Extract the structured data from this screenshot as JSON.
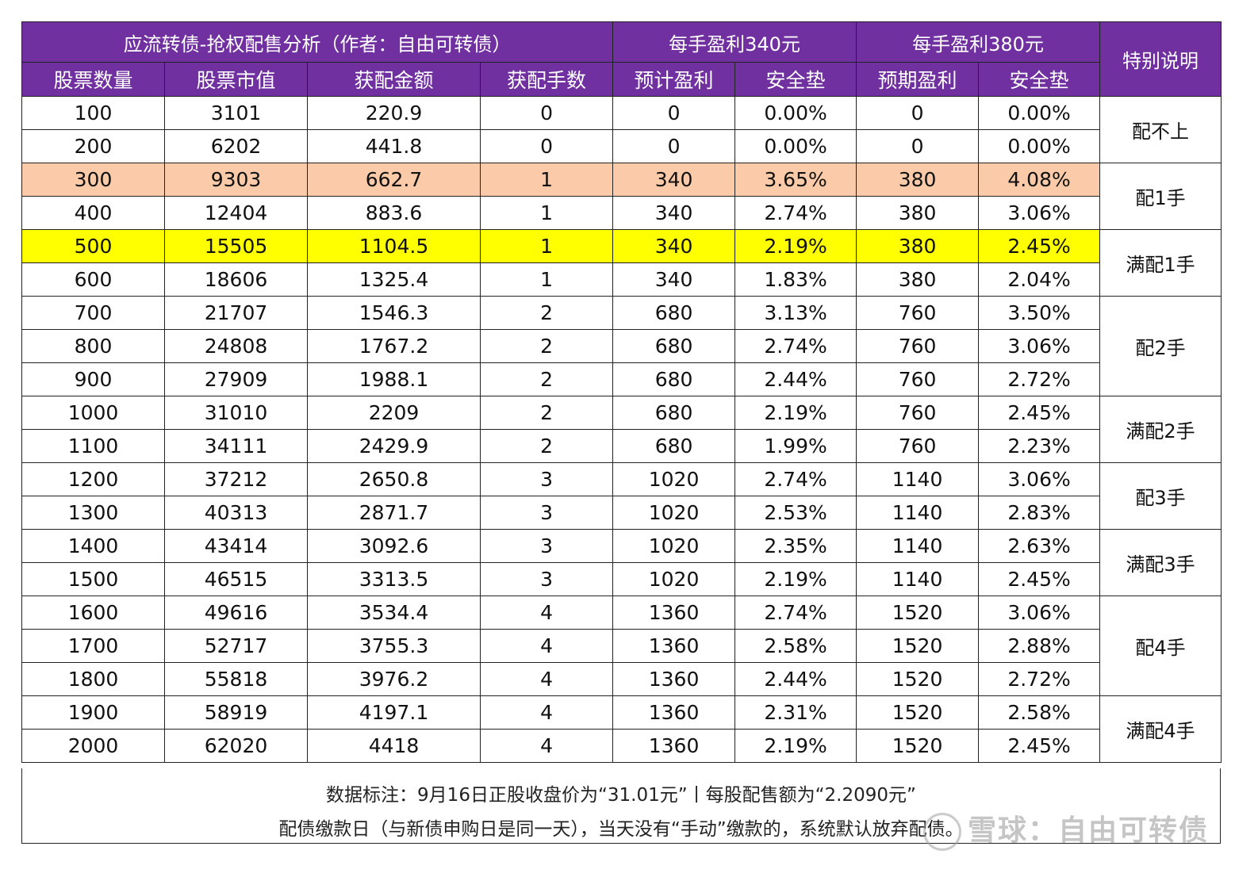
{
  "header": {
    "title": "应流转债-抢权配售分析（作者：自由可转债）",
    "group1": "每手盈利340元",
    "group2": "每手盈利380元",
    "special": "特别说明",
    "columns": [
      "股票数量",
      "股票市值",
      "获配金额",
      "获配手数",
      "预计盈利",
      "安全垫",
      "预期盈利",
      "安全垫"
    ]
  },
  "rows": [
    [
      "100",
      "3101",
      "220.9",
      "0",
      "0",
      "0.00%",
      "0",
      "0.00%"
    ],
    [
      "200",
      "6202",
      "441.8",
      "0",
      "0",
      "0.00%",
      "0",
      "0.00%"
    ],
    [
      "300",
      "9303",
      "662.7",
      "1",
      "340",
      "3.65%",
      "380",
      "4.08%"
    ],
    [
      "400",
      "12404",
      "883.6",
      "1",
      "340",
      "2.74%",
      "380",
      "3.06%"
    ],
    [
      "500",
      "15505",
      "1104.5",
      "1",
      "340",
      "2.19%",
      "380",
      "2.45%"
    ],
    [
      "600",
      "18606",
      "1325.4",
      "1",
      "340",
      "1.83%",
      "380",
      "2.04%"
    ],
    [
      "700",
      "21707",
      "1546.3",
      "2",
      "680",
      "3.13%",
      "760",
      "3.50%"
    ],
    [
      "800",
      "24808",
      "1767.2",
      "2",
      "680",
      "2.74%",
      "760",
      "3.06%"
    ],
    [
      "900",
      "27909",
      "1988.1",
      "2",
      "680",
      "2.44%",
      "760",
      "2.72%"
    ],
    [
      "1000",
      "31010",
      "2209",
      "2",
      "680",
      "2.19%",
      "760",
      "2.45%"
    ],
    [
      "1100",
      "34111",
      "2429.9",
      "2",
      "680",
      "1.99%",
      "760",
      "2.23%"
    ],
    [
      "1200",
      "37212",
      "2650.8",
      "3",
      "1020",
      "2.74%",
      "1140",
      "3.06%"
    ],
    [
      "1300",
      "40313",
      "2871.7",
      "3",
      "1020",
      "2.53%",
      "1140",
      "2.83%"
    ],
    [
      "1400",
      "43414",
      "3092.6",
      "3",
      "1020",
      "2.35%",
      "1140",
      "2.63%"
    ],
    [
      "1500",
      "46515",
      "3313.5",
      "3",
      "1020",
      "2.19%",
      "1140",
      "2.45%"
    ],
    [
      "1600",
      "49616",
      "3534.4",
      "4",
      "1360",
      "2.74%",
      "1520",
      "3.06%"
    ],
    [
      "1700",
      "52717",
      "3755.3",
      "4",
      "1360",
      "2.58%",
      "1520",
      "2.88%"
    ],
    [
      "1800",
      "55818",
      "3976.2",
      "4",
      "1360",
      "2.44%",
      "1520",
      "2.72%"
    ],
    [
      "1900",
      "58919",
      "4197.1",
      "4",
      "1360",
      "2.31%",
      "1520",
      "2.58%"
    ],
    [
      "2000",
      "62020",
      "4418",
      "4",
      "1360",
      "2.19%",
      "1520",
      "2.45%"
    ]
  ],
  "notes": [
    "配不上",
    "配1手",
    "满配1手",
    "配2手",
    "满配2手",
    "配3手",
    "满配3手",
    "配4手",
    "满配4手"
  ],
  "footer": {
    "line1": "数据标注：9月16日正股收盘价为“31.01元”丨每股配售额为“2.2090元”",
    "line2": "配债缴款日（与新债申购日是同一天），当天没有“手动”缴款的，系统默认放弃配债。"
  },
  "watermark": "雪球：自由可转债",
  "colors": {
    "header_bg": "#7030a0",
    "peach": "#fbcaa8",
    "yellow": "#ffff00"
  }
}
